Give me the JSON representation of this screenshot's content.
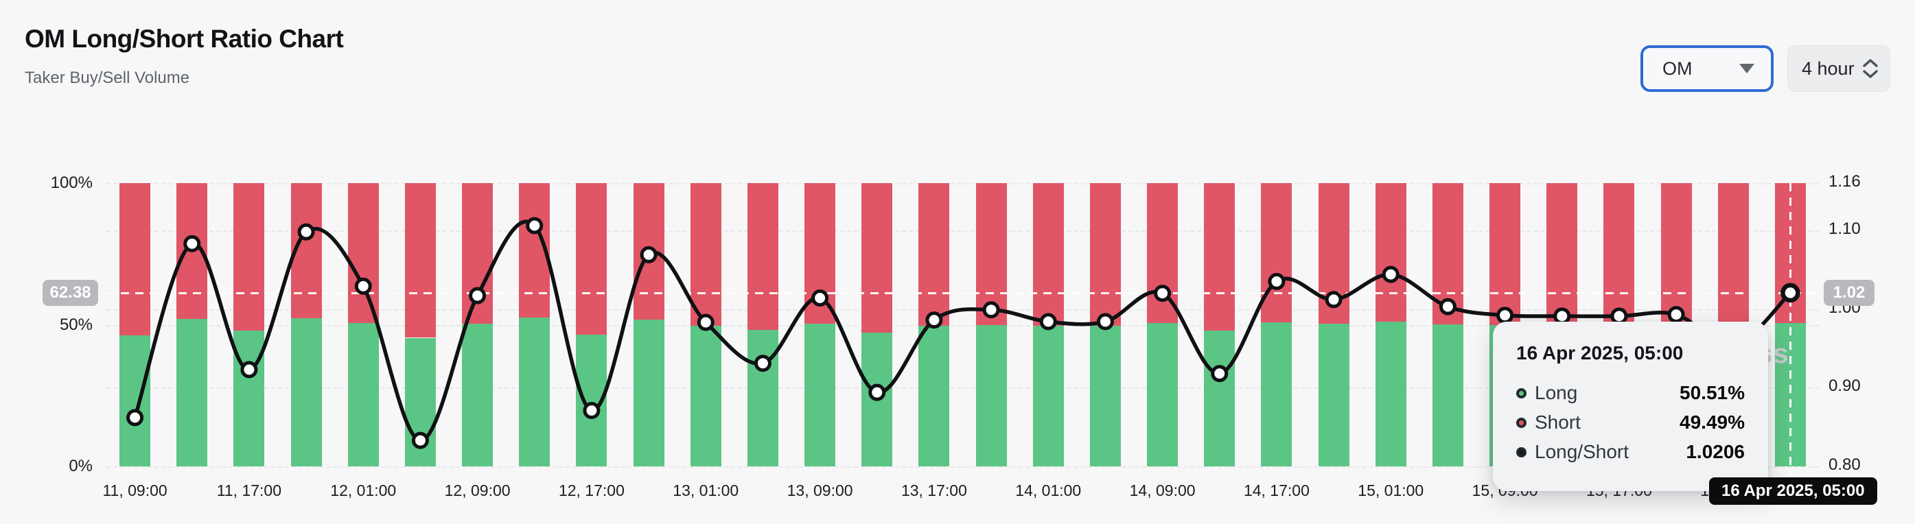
{
  "header": {
    "title": "OM Long/Short Ratio Chart",
    "subtitle": "Taker Buy/Sell Volume"
  },
  "controls": {
    "symbol_select": {
      "value": "OM"
    },
    "interval_select": {
      "value": "4 hour"
    }
  },
  "chart_data": {
    "type": "bar",
    "subtype": "stacked-bars-with-ratio-line",
    "title": "OM Long/Short Ratio Chart",
    "categories": [
      "11, 09:00",
      "11, 13:00",
      "11, 17:00",
      "11, 21:00",
      "12, 01:00",
      "12, 05:00",
      "12, 09:00",
      "12, 13:00",
      "12, 17:00",
      "12, 21:00",
      "13, 01:00",
      "13, 05:00",
      "13, 09:00",
      "13, 13:00",
      "13, 17:00",
      "13, 21:00",
      "14, 01:00",
      "14, 05:00",
      "14, 09:00",
      "14, 13:00",
      "14, 17:00",
      "14, 21:00",
      "15, 01:00",
      "15, 05:00",
      "15, 09:00",
      "15, 13:00",
      "15, 17:00",
      "15, 21:00",
      "16, 01:00",
      "16, 05:00"
    ],
    "x_tick_every": 2,
    "series": [
      {
        "name": "Long",
        "unit": "%",
        "color": "#5bc585",
        "axis": "left",
        "values": [
          46.3,
          52.0,
          48.0,
          52.3,
          50.7,
          45.4,
          50.4,
          52.5,
          46.6,
          51.7,
          49.6,
          48.2,
          50.3,
          47.2,
          49.6,
          50.0,
          49.6,
          49.6,
          50.5,
          47.9,
          50.9,
          50.3,
          51.1,
          50.1,
          49.8,
          49.8,
          49.8,
          49.8,
          48.8,
          50.51
        ]
      },
      {
        "name": "Short",
        "unit": "%",
        "color": "#e05666",
        "axis": "left",
        "values": [
          53.7,
          48.0,
          52.0,
          47.7,
          49.3,
          54.6,
          49.6,
          47.5,
          53.4,
          48.3,
          50.4,
          51.8,
          49.7,
          52.8,
          50.4,
          50.0,
          50.4,
          50.4,
          49.5,
          52.1,
          49.1,
          49.7,
          48.9,
          49.9,
          50.2,
          50.2,
          50.2,
          50.2,
          51.2,
          49.49
        ]
      },
      {
        "name": "Long/Short",
        "color": "#101113",
        "axis": "right",
        "values": [
          0.862,
          1.083,
          0.923,
          1.098,
          1.029,
          0.833,
          1.017,
          1.106,
          0.871,
          1.069,
          0.983,
          0.931,
          1.014,
          0.894,
          0.986,
          0.999,
          0.984,
          0.984,
          1.02,
          0.918,
          1.035,
          1.012,
          1.044,
          1.003,
          0.992,
          0.991,
          0.991,
          0.993,
          0.953,
          1.0206
        ]
      }
    ],
    "left_axis": {
      "min": 0,
      "max": 100,
      "ticks": [
        {
          "label": "100%",
          "value": 100
        },
        {
          "label": "50%",
          "value": 50
        },
        {
          "label": "0%",
          "value": 0
        }
      ]
    },
    "right_axis": {
      "min": 0.8,
      "max": 1.16,
      "ticks": [
        {
          "label": "1.16",
          "value": 1.16
        },
        {
          "label": "1.10",
          "value": 1.1
        },
        {
          "label": "1.00",
          "value": 1.0
        },
        {
          "label": "0.90",
          "value": 0.9
        },
        {
          "label": "0.80",
          "value": 0.8
        }
      ]
    },
    "gridlines_right_values": [
      1.1,
      1.0,
      0.9
    ],
    "gridlines_left_values": [
      100,
      50,
      0
    ],
    "legend": "none"
  },
  "crosshair": {
    "ratio_value": 1.0206,
    "left_badge": "62.38",
    "right_badge": "1.02",
    "x_badge": "16 Apr 2025, 05:00",
    "hover_index": 29
  },
  "tooltip": {
    "date": "16 Apr 2025, 05:00",
    "rows": [
      {
        "label": "Long",
        "value": "50.51%",
        "dot_color": "#5bc585"
      },
      {
        "label": "Short",
        "value": "49.49%",
        "dot_color": "#e05666"
      },
      {
        "label": "Long/Short",
        "value": "1.0206",
        "dot_color": "#17181b"
      }
    ]
  },
  "watermark_fragment": "ss"
}
